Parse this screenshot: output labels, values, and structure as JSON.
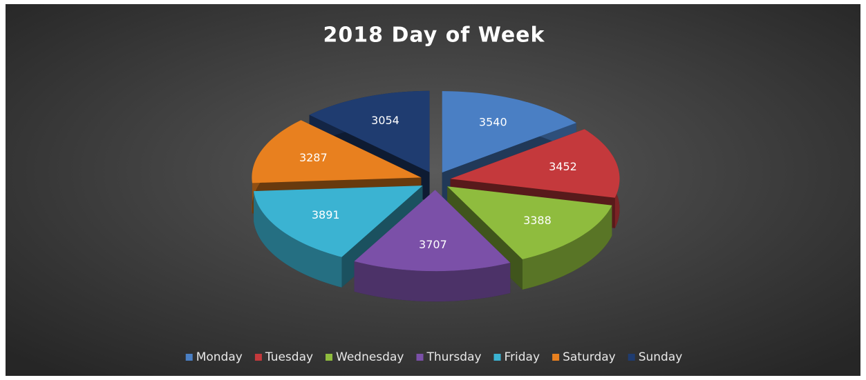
{
  "chart_data": {
    "type": "pie3d",
    "title": "2018 Day of Week",
    "categories": [
      "Monday",
      "Tuesday",
      "Wednesday",
      "Thursday",
      "Friday",
      "Saturday",
      "Sunday"
    ],
    "values": [
      3540,
      3452,
      3388,
      3707,
      3891,
      3287,
      3054
    ],
    "colors": [
      "#4a7fc4",
      "#c4393c",
      "#8fbc3e",
      "#7b50a8",
      "#3bb3d2",
      "#e8801f",
      "#1f3c70"
    ],
    "legend": "bottom"
  }
}
